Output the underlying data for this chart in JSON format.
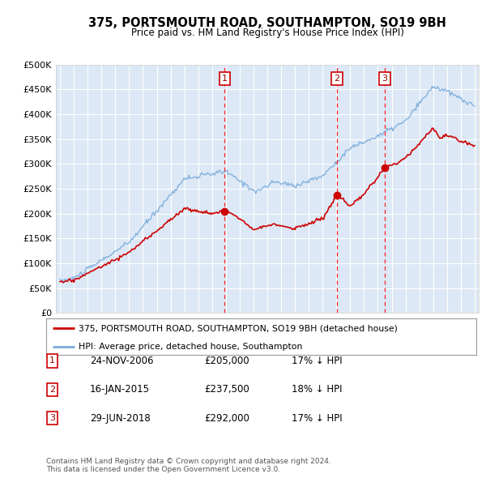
{
  "title": "375, PORTSMOUTH ROAD, SOUTHAMPTON, SO19 9BH",
  "subtitle": "Price paid vs. HM Land Registry's House Price Index (HPI)",
  "background_color": "#ffffff",
  "plot_bg_color": "#dce8f5",
  "grid_color": "#ffffff",
  "ylim": [
    0,
    500000
  ],
  "yticks": [
    0,
    50000,
    100000,
    150000,
    200000,
    250000,
    300000,
    350000,
    400000,
    450000,
    500000
  ],
  "ytick_labels": [
    "£0",
    "£50K",
    "£100K",
    "£150K",
    "£200K",
    "£250K",
    "£300K",
    "£350K",
    "£400K",
    "£450K",
    "£500K"
  ],
  "sale_dates": [
    2006.9,
    2015.05,
    2018.5
  ],
  "sale_prices": [
    205000,
    237500,
    292000
  ],
  "sale_labels": [
    "1",
    "2",
    "3"
  ],
  "sale_date_strings": [
    "24-NOV-2006",
    "16-JAN-2015",
    "29-JUN-2018"
  ],
  "sale_price_strings": [
    "£205,000",
    "£237,500",
    "£292,000"
  ],
  "sale_hpi_strings": [
    "17% ↓ HPI",
    "18% ↓ HPI",
    "17% ↓ HPI"
  ],
  "legend_red": "375, PORTSMOUTH ROAD, SOUTHAMPTON, SO19 9BH (detached house)",
  "legend_blue": "HPI: Average price, detached house, Southampton",
  "footer": "Contains HM Land Registry data © Crown copyright and database right 2024.\nThis data is licensed under the Open Government Licence v3.0.",
  "red_color": "#cc0000",
  "blue_color": "#7aabdc",
  "xlim_left": 1994.7,
  "xlim_right": 2025.3
}
